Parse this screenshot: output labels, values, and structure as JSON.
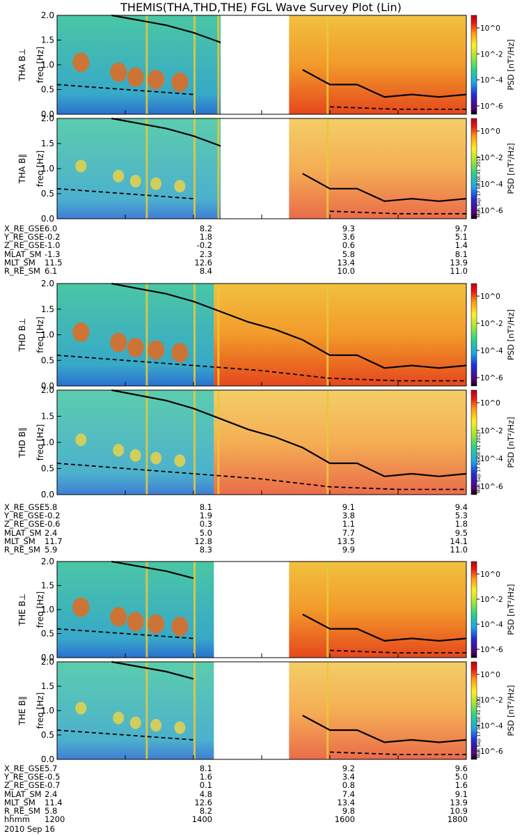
{
  "title": "THEMIS(THA,THD,THE) FGL Wave Survey Plot (Lin)",
  "chart_data": {
    "type": "heatmap",
    "x_axis": {
      "label": "hhmm",
      "ticks": [
        "1200",
        "1400",
        "1600",
        "1800"
      ],
      "range_hours": [
        12.0,
        18.0
      ]
    },
    "y_axis": {
      "label": "freq [Hz]",
      "ticks": [
        "0.0",
        "0.5",
        "1.0",
        "1.5",
        "2.0"
      ],
      "range": [
        0.0,
        2.0
      ]
    },
    "colorbar": {
      "label": "PSD [nT²/Hz]",
      "scale": "log",
      "ticks": [
        "10^0",
        "10^-2",
        "10^-4",
        "10^-6"
      ]
    },
    "stamp": "Mon Sep 17 06:08:41 2012",
    "panels": [
      {
        "probe": "THA",
        "component": "B⊥",
        "ylabel": "THA B⊥",
        "gap": [
          14.4,
          15.4
        ]
      },
      {
        "probe": "THA",
        "component": "B∥",
        "ylabel": "THA B∥",
        "gap": [
          14.4,
          15.4
        ]
      },
      {
        "probe": "THD",
        "component": "B⊥",
        "ylabel": "THD B⊥",
        "gap": null
      },
      {
        "probe": "THD",
        "component": "B∥",
        "ylabel": "THD B∥",
        "gap": null
      },
      {
        "probe": "THE",
        "component": "B⊥",
        "ylabel": "THE B⊥",
        "gap": [
          14.3,
          15.4
        ]
      },
      {
        "probe": "THE",
        "component": "B∥",
        "ylabel": "THE B∥",
        "gap": [
          14.3,
          15.4
        ]
      }
    ],
    "gyrofrequency_line": {
      "x_hours": [
        12.8,
        13.2,
        13.6,
        14.0,
        14.4,
        14.8,
        15.2,
        15.6,
        16.0,
        16.4,
        16.8,
        17.2,
        17.6,
        18.0
      ],
      "y_hz": [
        2.0,
        1.9,
        1.8,
        1.65,
        1.45,
        1.25,
        1.1,
        0.9,
        0.6,
        0.6,
        0.35,
        0.4,
        0.35,
        0.4
      ]
    },
    "quarter_gyro_line": {
      "x_hours": [
        12.0,
        13.0,
        14.0,
        15.0,
        16.0,
        17.0,
        18.0
      ],
      "y_hz": [
        0.6,
        0.5,
        0.4,
        0.3,
        0.15,
        0.1,
        0.1
      ]
    }
  },
  "ephemeris": [
    {
      "probe": "THA",
      "rows": [
        {
          "label": "X_RE_GSE",
          "values": [
            "6.0",
            "8.2",
            "9.3",
            "9.7"
          ]
        },
        {
          "label": "Y_RE_GSE",
          "values": [
            "-0.2",
            "1.8",
            "3.6",
            "5.1"
          ]
        },
        {
          "label": "Z_RE_GSE",
          "values": [
            "-1.0",
            "-0.2",
            "0.6",
            "1.4"
          ]
        },
        {
          "label": "MLAT_SM",
          "values": [
            "-1.3",
            "2.3",
            "5.8",
            "8.1"
          ]
        },
        {
          "label": "MLT_SM",
          "values": [
            "11.5",
            "12.6",
            "13.4",
            "13.9"
          ]
        },
        {
          "label": "R_RE_SM",
          "values": [
            "6.1",
            "8.4",
            "10.0",
            "11.0"
          ]
        }
      ]
    },
    {
      "probe": "THD",
      "rows": [
        {
          "label": "X_RE_GSE",
          "values": [
            "5.8",
            "8.1",
            "9.1",
            "9.4"
          ]
        },
        {
          "label": "Y_RE_GSE",
          "values": [
            "-0.2",
            "1.9",
            "3.8",
            "5.3"
          ]
        },
        {
          "label": "Z_RE_GSE",
          "values": [
            "-0.6",
            "0.3",
            "1.1",
            "1.8"
          ]
        },
        {
          "label": "MLAT_SM",
          "values": [
            "2.4",
            "5.0",
            "7.7",
            "9.5"
          ]
        },
        {
          "label": "MLT_SM",
          "values": [
            "11.7",
            "12.8",
            "13.5",
            "14.1"
          ]
        },
        {
          "label": "R_RE_SM",
          "values": [
            "5.9",
            "8.3",
            "9.9",
            "11.0"
          ]
        }
      ]
    },
    {
      "probe": "THE",
      "rows": [
        {
          "label": "X_RE_GSE",
          "values": [
            "5.7",
            "8.1",
            "9.2",
            "9.6"
          ]
        },
        {
          "label": "Y_RE_GSE",
          "values": [
            "-0.5",
            "1.6",
            "3.4",
            "5.0"
          ]
        },
        {
          "label": "Z_RE_GSE",
          "values": [
            "-0.7",
            "0.1",
            "0.8",
            "1.6"
          ]
        },
        {
          "label": "MLAT_SM",
          "values": [
            "2.4",
            "4.8",
            "7.4",
            "9.1"
          ]
        },
        {
          "label": "MLT_SM",
          "values": [
            "11.4",
            "12.6",
            "13.4",
            "13.9"
          ]
        },
        {
          "label": "R_RE_SM",
          "values": [
            "5.8",
            "8.2",
            "9.8",
            "10.9"
          ]
        },
        {
          "label": "hhmm",
          "values": [
            "1200",
            "1400",
            "1600",
            "1800"
          ]
        }
      ]
    }
  ],
  "date": "2010 Sep 16"
}
